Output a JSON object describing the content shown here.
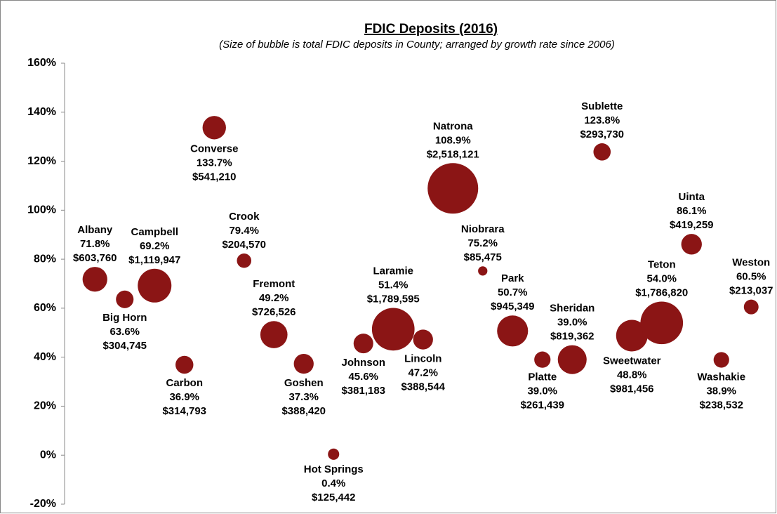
{
  "chart_data": {
    "type": "bubble",
    "title": "FDIC Deposits (2016)",
    "subtitle": "(Size of bubble is total FDIC deposits in County; arranged by growth rate since 2006)",
    "color": "#8b1515",
    "categories": [
      "Albany",
      "Big Horn",
      "Campbell",
      "Carbon",
      "Converse",
      "Crook",
      "Fremont",
      "Goshen",
      "Hot Springs",
      "Johnson",
      "Laramie",
      "Lincoln",
      "Natrona",
      "Niobrara",
      "Park",
      "Platte",
      "Sheridan",
      "Sublette",
      "Sweetwater",
      "Teton",
      "Uinta",
      "Washakie",
      "Weston"
    ],
    "values": [
      71.8,
      63.6,
      69.2,
      36.9,
      133.7,
      79.4,
      49.2,
      37.3,
      0.4,
      45.6,
      51.4,
      47.2,
      108.9,
      75.2,
      50.7,
      39.0,
      39.0,
      123.8,
      48.8,
      54.0,
      86.1,
      38.9,
      60.5
    ],
    "value_labels": [
      "71.8%",
      "63.6%",
      "69.2%",
      "36.9%",
      "133.7%",
      "79.4%",
      "49.2%",
      "37.3%",
      "0.4%",
      "45.6%",
      "51.4%",
      "47.2%",
      "108.9%",
      "75.2%",
      "50.7%",
      "39.0%",
      "39.0%",
      "123.8%",
      "48.8%",
      "54.0%",
      "86.1%",
      "38.9%",
      "60.5%"
    ],
    "sizes": [
      603760,
      304745,
      1119947,
      314793,
      541210,
      204570,
      726526,
      388420,
      125442,
      381183,
      1789595,
      388544,
      2518121,
      85475,
      945349,
      261439,
      819362,
      293730,
      981456,
      1786820,
      419259,
      238532,
      213037
    ],
    "size_labels": [
      "$603,760",
      "$304,745",
      "$1,119,947",
      "$314,793",
      "$541,210",
      "$204,570",
      "$726,526",
      "$388,420",
      "$125,442",
      "$381,183",
      "$1,789,595",
      "$388,544",
      "$2,518,121",
      "$85,475",
      "$945,349",
      "$261,439",
      "$819,362",
      "$293,730",
      "$981,456",
      "$1,786,820",
      "$419,259",
      "$238,532",
      "$213,037"
    ],
    "ylim": [
      -20,
      160
    ],
    "yticks": [
      {
        "value": -20,
        "label": "-20%"
      },
      {
        "value": 0,
        "label": "0%"
      },
      {
        "value": 20,
        "label": "20%"
      },
      {
        "value": 40,
        "label": "40%"
      },
      {
        "value": 60,
        "label": "60%"
      },
      {
        "value": 80,
        "label": "80%"
      },
      {
        "value": 100,
        "label": "100%"
      },
      {
        "value": 120,
        "label": "120%"
      },
      {
        "value": 140,
        "label": "140%"
      },
      {
        "value": 160,
        "label": "160%"
      }
    ]
  }
}
